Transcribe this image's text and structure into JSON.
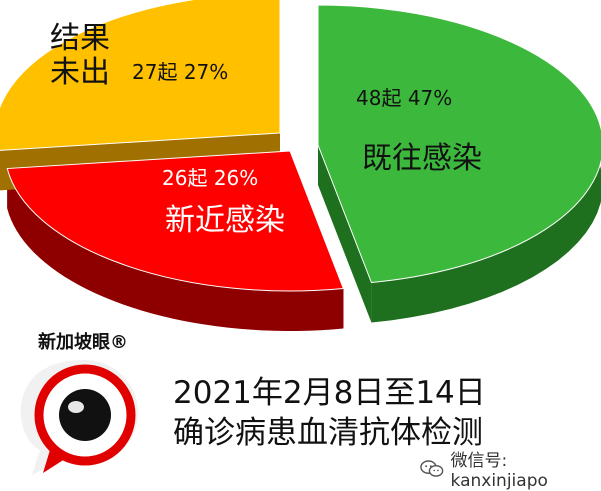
{
  "chart_data": {
    "type": "pie",
    "slices": [
      {
        "name": "既往感染",
        "count_label": "48起",
        "percent": 47,
        "percent_label": "47%",
        "color": "#3CB93C",
        "side_color": "#1E6F1E"
      },
      {
        "name": "新近感染",
        "count_label": "26起",
        "percent": 26,
        "percent_label": "26%",
        "color": "#FF0000",
        "side_color": "#8E0000"
      },
      {
        "name": "结果\n未出",
        "count_label": "27起",
        "percent": 27,
        "percent_label": "27%",
        "color": "#FFC000",
        "side_color": "#A07000"
      }
    ]
  },
  "caption": {
    "line1": "2021年2月8日至14日",
    "line2": "确诊病患血清抗体检测"
  },
  "brand": {
    "name": "新加坡眼®"
  },
  "watermark": {
    "text": "微信号: kanxinjiapo",
    "icon": "wechat-icon"
  }
}
